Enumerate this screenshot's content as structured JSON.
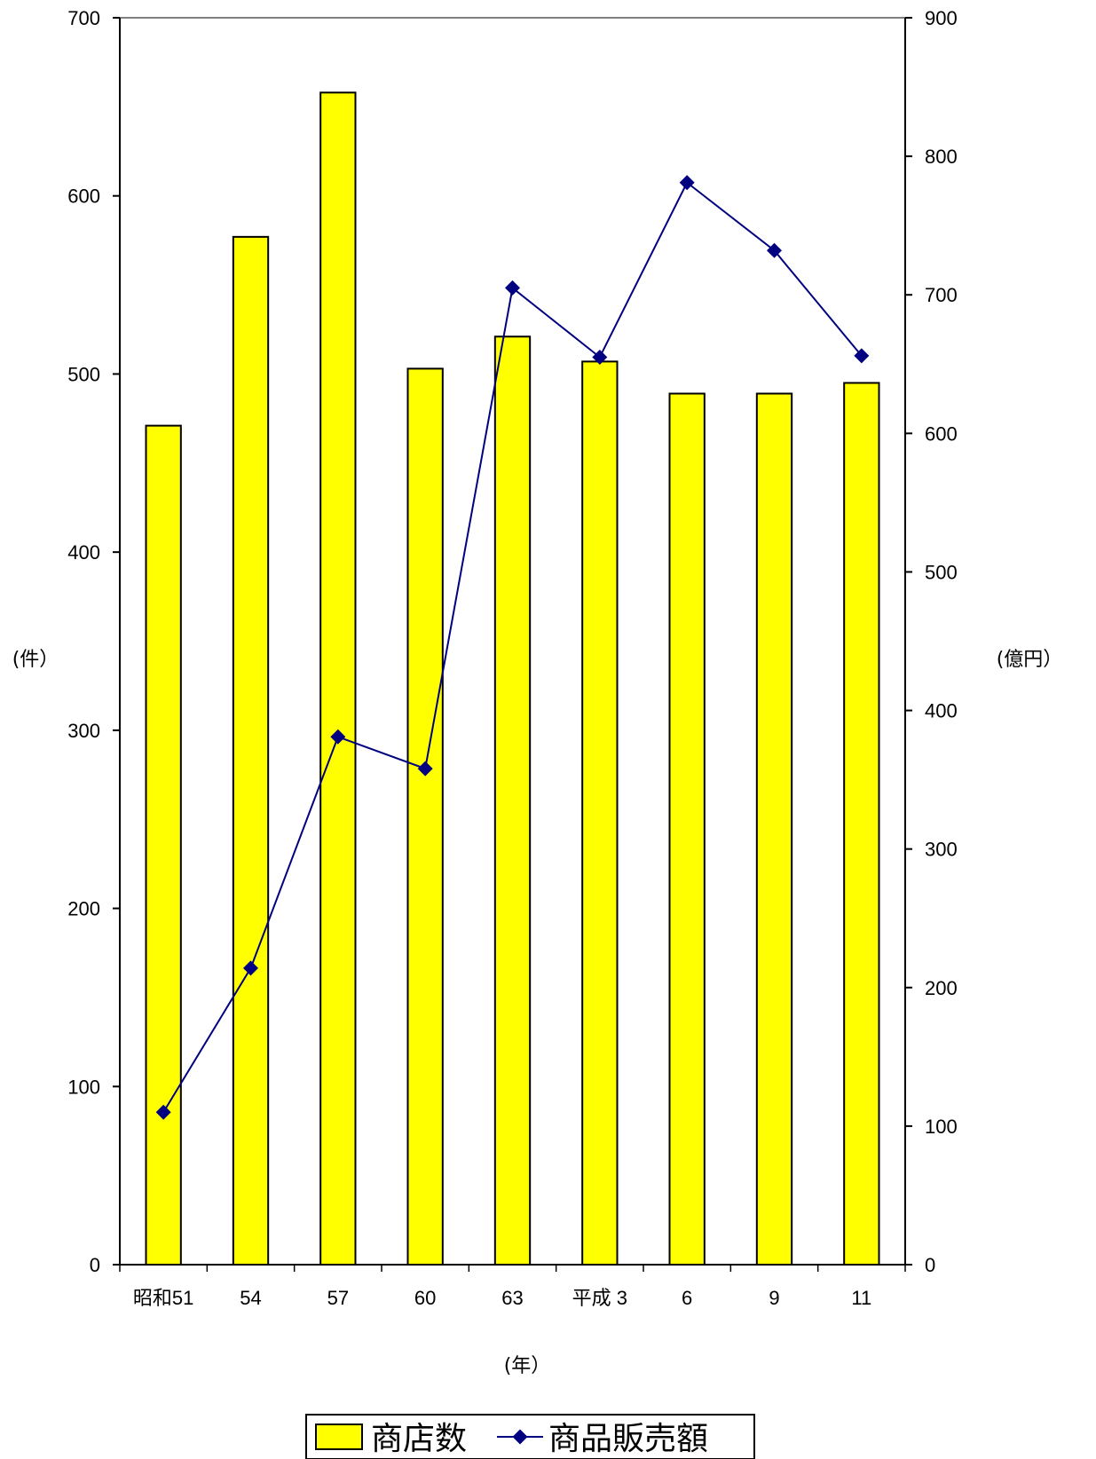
{
  "chart_data": {
    "type": "bar",
    "categories": [
      "昭和51",
      "54",
      "57",
      "60",
      "63",
      "平成 3",
      "6",
      "9",
      "11"
    ],
    "xlabel": "(年）",
    "y_left": {
      "label": "(件）",
      "range": [
        0,
        700
      ],
      "ticks": [
        0,
        100,
        200,
        300,
        400,
        500,
        600,
        700
      ]
    },
    "y_right": {
      "label": "(億円）",
      "range": [
        0,
        900
      ],
      "ticks": [
        0,
        100,
        200,
        300,
        400,
        500,
        600,
        700,
        800,
        900
      ]
    },
    "series": [
      {
        "name": "商店数",
        "type": "bar",
        "axis": "left",
        "color": "#ffff00",
        "values": [
          471,
          577,
          658,
          503,
          521,
          507,
          489,
          489,
          495
        ]
      },
      {
        "name": "商品販売額",
        "type": "line",
        "axis": "right",
        "color": "#000080",
        "values": [
          110,
          214,
          381,
          358,
          705,
          655,
          781,
          732,
          656
        ]
      }
    ],
    "legend_position": "bottom",
    "grid": false
  }
}
